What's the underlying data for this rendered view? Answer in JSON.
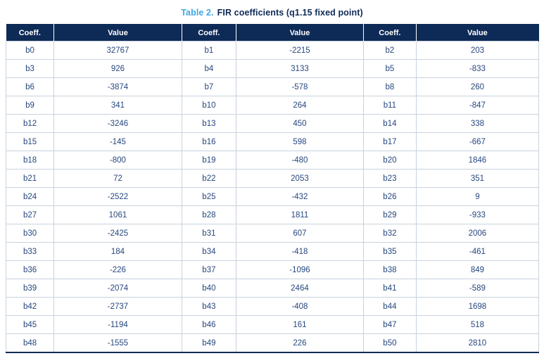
{
  "title": {
    "label": "Table 2.",
    "text": "FIR coefficients (q1.15 fixed point)"
  },
  "table": {
    "columns": [
      "Coeff.",
      "Value",
      "Coeff.",
      "Value",
      "Coeff.",
      "Value"
    ],
    "rows": [
      [
        "b0",
        "32767",
        "b1",
        "-2215",
        "b2",
        "203"
      ],
      [
        "b3",
        "926",
        "b4",
        "3133",
        "b5",
        "-833"
      ],
      [
        "b6",
        "-3874",
        "b7",
        "-578",
        "b8",
        "260"
      ],
      [
        "b9",
        "341",
        "b10",
        "264",
        "b11",
        "-847"
      ],
      [
        "b12",
        "-3246",
        "b13",
        "450",
        "b14",
        "338"
      ],
      [
        "b15",
        "-145",
        "b16",
        "598",
        "b17",
        "-667"
      ],
      [
        "b18",
        "-800",
        "b19",
        "-480",
        "b20",
        "1846"
      ],
      [
        "b21",
        "72",
        "b22",
        "2053",
        "b23",
        "351"
      ],
      [
        "b24",
        "-2522",
        "b25",
        "-432",
        "b26",
        "9"
      ],
      [
        "b27",
        "1061",
        "b28",
        "1811",
        "b29",
        "-933"
      ],
      [
        "b30",
        "-2425",
        "b31",
        "607",
        "b32",
        "2006"
      ],
      [
        "b33",
        "184",
        "b34",
        "-418",
        "b35",
        "-461"
      ],
      [
        "b36",
        "-226",
        "b37",
        "-1096",
        "b38",
        "849"
      ],
      [
        "b39",
        "-2074",
        "b40",
        "2464",
        "b41",
        "-589"
      ],
      [
        "b42",
        "-2737",
        "b43",
        "-408",
        "b44",
        "1698"
      ],
      [
        "b45",
        "-1194",
        "b46",
        "161",
        "b47",
        "518"
      ],
      [
        "b48",
        "-1555",
        "b49",
        "226",
        "b50",
        "2810"
      ]
    ]
  },
  "colors": {
    "header_bg": "#0e2a56",
    "header_text": "#ffffff",
    "body_text": "#26477e",
    "title_accent": "#41a7e0",
    "title_text": "#0e2a56",
    "grid_line": "#c9d2de",
    "bottom_rule": "#0e2a56"
  }
}
